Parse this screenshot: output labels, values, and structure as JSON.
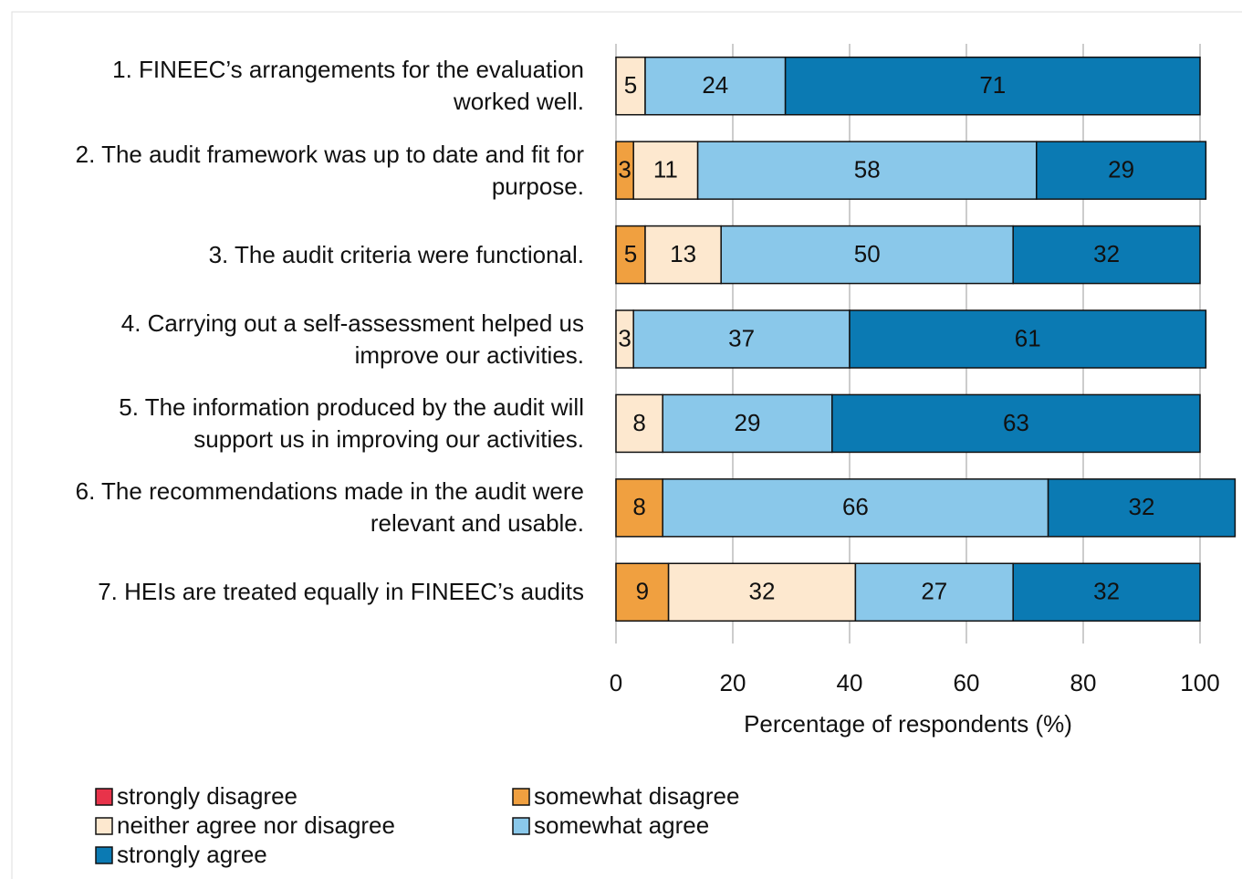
{
  "chart_data": {
    "type": "stacked-bar-horizontal",
    "categories": [
      "1. FINEEC’s arrangements for the evaluation\nworked well.",
      "2. The audit framework was up to date and fit for\npurpose.",
      "3. The audit criteria were functional.",
      "4. Carrying out a self-assessment helped us\nimprove our activities.",
      "5. The information produced by the audit will\nsupport us in improving our activities.",
      "6. The recommendations made in the audit were\nrelevant and usable.",
      "7. HEIs are treated equally in FINEEC’s audits"
    ],
    "series": [
      {
        "name": "strongly disagree",
        "color": "#e8334a",
        "values": [
          0,
          0,
          0,
          0,
          0,
          0,
          0
        ]
      },
      {
        "name": "somewhat disagree",
        "color": "#f0a040",
        "values": [
          0,
          3,
          5,
          0,
          0,
          8,
          9
        ]
      },
      {
        "name": "neither agree nor disagree",
        "color": "#fde8cf",
        "values": [
          5,
          11,
          13,
          3,
          8,
          0,
          32
        ]
      },
      {
        "name": "somewhat agree",
        "color": "#8ac8ea",
        "values": [
          24,
          58,
          50,
          37,
          29,
          66,
          27
        ]
      },
      {
        "name": "strongly agree",
        "color": "#0b7ab3",
        "values": [
          71,
          29,
          32,
          61,
          63,
          32,
          32
        ]
      }
    ],
    "xlabel": "Percentage of respondents (%)",
    "xlim": [
      0,
      100
    ],
    "xticks": [
      0,
      20,
      40,
      60,
      80,
      100
    ],
    "grid": true,
    "legend": "bottom"
  }
}
